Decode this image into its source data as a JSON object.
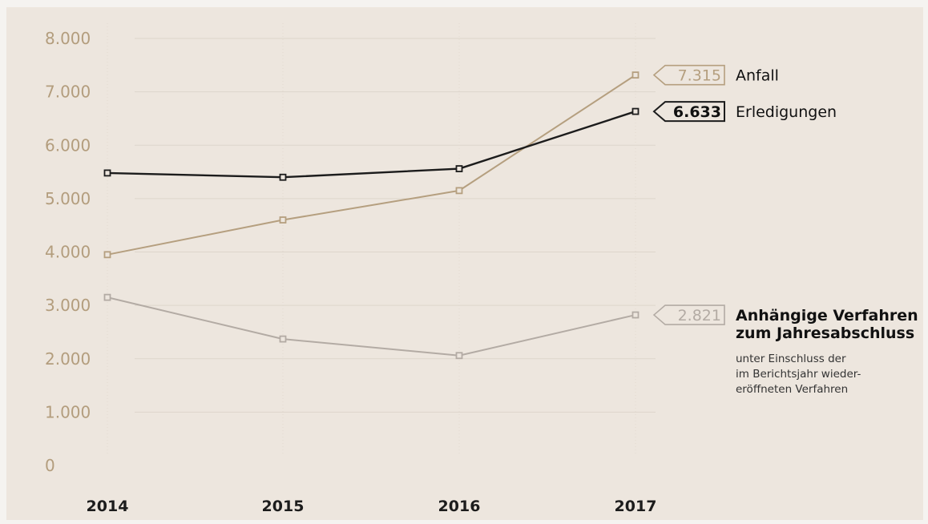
{
  "colors": {
    "background": "#ede6de",
    "grid": "#ddd5cb",
    "anfall": "#b59f7f",
    "erledigungen": "#1c1c1c",
    "anhaengig": "#b3aba4",
    "ytick": "#b39d7d"
  },
  "chart_data": {
    "type": "line",
    "title": "",
    "xlabel": "",
    "ylabel": "",
    "x": [
      "2014",
      "2015",
      "2016",
      "2017"
    ],
    "ylim": [
      0,
      8000
    ],
    "yticks": [
      0,
      1000,
      2000,
      3000,
      4000,
      5000,
      6000,
      7000,
      8000
    ],
    "ytick_labels": [
      "0",
      "1.000",
      "2.000",
      "3.000",
      "4.000",
      "5.000",
      "6.000",
      "7.000",
      "8.000"
    ],
    "grid": true,
    "series": [
      {
        "key": "anfall",
        "name": "Anfall",
        "values": [
          3950,
          4600,
          5150,
          7315
        ],
        "end_label": "7.315",
        "color": "#b59f7f"
      },
      {
        "key": "erledigungen",
        "name": "Erledigungen",
        "values": [
          5480,
          5400,
          5560,
          6633
        ],
        "end_label": "6.633",
        "color": "#1c1c1c"
      },
      {
        "key": "anhaengig",
        "name": "Anhängige Verfahren zum Jahresabschluss",
        "name_lines": [
          "Anhängige Verfahren",
          "zum Jahresabschluss"
        ],
        "subtitle_lines": [
          "unter Einschluss der",
          "im Berichtsjahr wieder-",
          "eröffneten Verfahren"
        ],
        "values": [
          3150,
          2370,
          2060,
          2821
        ],
        "end_label": "2.821",
        "color": "#b3aba4"
      }
    ]
  }
}
